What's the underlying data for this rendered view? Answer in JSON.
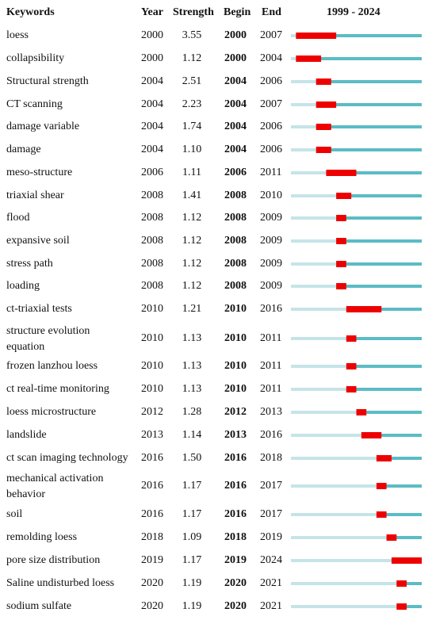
{
  "headers": {
    "keywords": "Keywords",
    "year": "Year",
    "strength": "Strength",
    "begin": "Begin",
    "end": "End",
    "range": "1999 - 2024"
  },
  "colors": {
    "burst": "#ee0000",
    "active": "#5bbcc4",
    "inactive": "#c5e4e8"
  },
  "chart_data": {
    "type": "table",
    "title": "1999 - 2024",
    "range": [
      1999,
      2024
    ],
    "columns": [
      "Keywords",
      "Year",
      "Strength",
      "Begin",
      "End"
    ],
    "rows": [
      {
        "keyword": "loess",
        "year": "2000",
        "strength": "3.55",
        "begin": "2000",
        "end": "2007"
      },
      {
        "keyword": "collapsibility",
        "year": "2000",
        "strength": "1.12",
        "begin": "2000",
        "end": "2004"
      },
      {
        "keyword": "Structural strength",
        "year": "2004",
        "strength": "2.51",
        "begin": "2004",
        "end": "2006"
      },
      {
        "keyword": "CT scanning",
        "year": "2004",
        "strength": "2.23",
        "begin": "2004",
        "end": "2007"
      },
      {
        "keyword": "damage variable",
        "year": "2004",
        "strength": "1.74",
        "begin": "2004",
        "end": "2006"
      },
      {
        "keyword": "damage",
        "year": "2004",
        "strength": "1.10",
        "begin": "2004",
        "end": "2006"
      },
      {
        "keyword": "meso-structure",
        "year": "2006",
        "strength": "1.11",
        "begin": "2006",
        "end": "2011"
      },
      {
        "keyword": "triaxial shear",
        "year": "2008",
        "strength": "1.41",
        "begin": "2008",
        "end": "2010"
      },
      {
        "keyword": "flood",
        "year": "2008",
        "strength": "1.12",
        "begin": "2008",
        "end": "2009"
      },
      {
        "keyword": "expansive soil",
        "year": "2008",
        "strength": "1.12",
        "begin": "2008",
        "end": "2009"
      },
      {
        "keyword": "stress path",
        "year": "2008",
        "strength": "1.12",
        "begin": "2008",
        "end": "2009"
      },
      {
        "keyword": "loading",
        "year": "2008",
        "strength": "1.12",
        "begin": "2008",
        "end": "2009"
      },
      {
        "keyword": "ct-triaxial tests",
        "year": "2010",
        "strength": "1.21",
        "begin": "2010",
        "end": "2016"
      },
      {
        "keyword": [
          "structure evolution",
          "equation"
        ],
        "year": "2010",
        "strength": "1.13",
        "begin": "2010",
        "end": "2011"
      },
      {
        "keyword": "frozen lanzhou loess",
        "year": "2010",
        "strength": "1.13",
        "begin": "2010",
        "end": "2011"
      },
      {
        "keyword": "ct real-time monitoring",
        "year": "2010",
        "strength": "1.13",
        "begin": "2010",
        "end": "2011"
      },
      {
        "keyword": "loess microstructure",
        "year": "2012",
        "strength": "1.28",
        "begin": "2012",
        "end": "2013"
      },
      {
        "keyword": "landslide",
        "year": "2013",
        "strength": "1.14",
        "begin": "2013",
        "end": "2016"
      },
      {
        "keyword": "ct scan imaging technology",
        "year": "2016",
        "strength": "1.50",
        "begin": "2016",
        "end": "2018"
      },
      {
        "keyword": [
          "mechanical activation",
          "behavior"
        ],
        "year": "2016",
        "strength": "1.17",
        "begin": "2016",
        "end": "2017"
      },
      {
        "keyword": "soil",
        "year": "2016",
        "strength": "1.17",
        "begin": "2016",
        "end": "2017"
      },
      {
        "keyword": "remolding loess",
        "year": "2018",
        "strength": "1.09",
        "begin": "2018",
        "end": "2019"
      },
      {
        "keyword": "pore size distribution",
        "year": "2019",
        "strength": "1.17",
        "begin": "2019",
        "end": "2024"
      },
      {
        "keyword": "Saline undisturbed loess",
        "year": "2020",
        "strength": "1.19",
        "begin": "2020",
        "end": "2021"
      },
      {
        "keyword": "sodium sulfate",
        "year": "2020",
        "strength": "1.19",
        "begin": "2020",
        "end": "2021"
      }
    ]
  }
}
